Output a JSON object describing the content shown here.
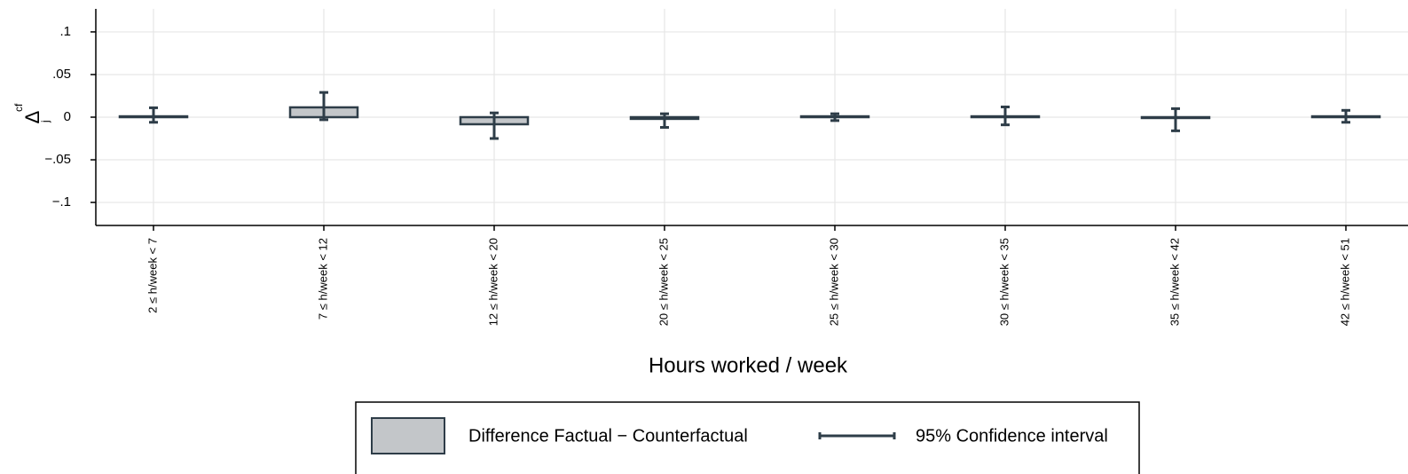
{
  "chart_data": {
    "type": "bar",
    "y_label": "Δ",
    "y_label_subscript": "j",
    "y_label_superscript": "cf",
    "x_label": "Hours worked / week",
    "categories": [
      "2 ≤ h/week < 7",
      "7 ≤ h/week < 12",
      "12 ≤ h/week < 20",
      "20 ≤ h/week < 25",
      "25 ≤ h/week < 30",
      "30 ≤ h/week < 35",
      "35 ≤ h/week < 42",
      "42 ≤ h/week < 51"
    ],
    "series": [
      {
        "name": "Difference Factual − Counterfactual",
        "color": "#c3c6c9",
        "edge_color": "#2e3d48",
        "values": [
          0.001,
          0.0115,
          -0.0083,
          -0.002,
          0.001,
          0.001,
          -0.001,
          0.001
        ]
      }
    ],
    "ci": {
      "name": "95% Confidence interval",
      "color": "#2e3d48",
      "low": [
        -0.006,
        -0.003,
        -0.025,
        -0.012,
        -0.004,
        -0.009,
        -0.016,
        -0.006
      ],
      "high": [
        0.011,
        0.029,
        0.005,
        0.004,
        0.004,
        0.012,
        0.01,
        0.008
      ]
    },
    "ylim": [
      -0.127,
      0.127
    ],
    "yticks": [
      {
        "value": -0.1,
        "label": "−.1"
      },
      {
        "value": -0.05,
        "label": "−.05"
      },
      0,
      {
        "value": 0.05,
        "label": ".05"
      },
      {
        "value": 0.1,
        "label": ".1"
      }
    ],
    "grid": true
  }
}
